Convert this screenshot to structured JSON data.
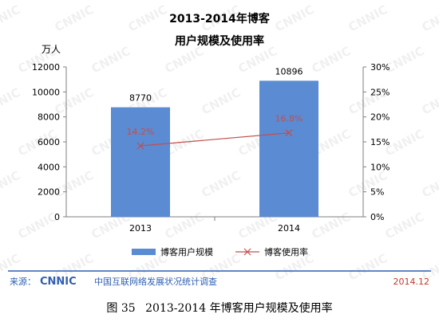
{
  "chart_data": {
    "type": "bar",
    "title": [
      "2013-2014年博客",
      "用户规模及使用率"
    ],
    "left_unit": "万人",
    "categories": [
      "2013",
      "2014"
    ],
    "bar_series": {
      "name": "博客用户规模",
      "values": [
        8770,
        10896
      ],
      "color": "#5b8bd3"
    },
    "line_series": {
      "name": "博客使用率",
      "values": [
        14.2,
        16.8
      ],
      "labels": [
        "14.2%",
        "16.8%"
      ],
      "color": "#c0504d"
    },
    "y_left": {
      "ylim": [
        0,
        12000
      ],
      "ticks": [
        0,
        2000,
        4000,
        6000,
        8000,
        10000,
        12000
      ]
    },
    "y_right": {
      "ylim": [
        0,
        30
      ],
      "ticks": [
        "0%",
        "5%",
        "10%",
        "15%",
        "20%",
        "25%",
        "30%"
      ]
    },
    "legend_position": "bottom",
    "grid": false
  },
  "source": {
    "label": "来源：",
    "logo": "CNNIC",
    "org": "中国互联网络发展状况统计调查",
    "date": "2014.12"
  },
  "watermark": "CNNIC",
  "colors": {
    "source_blue": "#2f5fb3",
    "date_orange": "#c0392b",
    "divider": "#2f5fb3"
  },
  "figure_caption": {
    "number": "图 35",
    "text": "2013-2014 年博客用户规模及使用率"
  }
}
